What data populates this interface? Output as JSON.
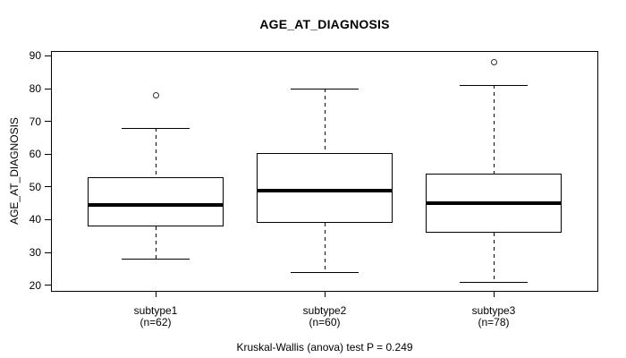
{
  "colors": {
    "line": "#000000",
    "median": "#000000",
    "box_fill": "#ffffff",
    "text": "#000000",
    "background": "#ffffff",
    "outlier_stroke": "#2f2f2f"
  },
  "chart_data": {
    "type": "boxplot",
    "title": "AGE_AT_DIAGNOSIS",
    "ylabel": "AGE_AT_DIAGNOSIS",
    "xlabel": "",
    "annotation": "Kruskal-Wallis (anova) test P = 0.249",
    "yticks": [
      20,
      30,
      40,
      50,
      60,
      70,
      80,
      90
    ],
    "ylim": [
      18,
      91.5
    ],
    "grid": false,
    "legend": false,
    "categories": [
      "subtype1",
      "subtype2",
      "subtype3"
    ],
    "series": [
      {
        "name": "subtype1",
        "sublabel": "(n=62)",
        "n": 62,
        "whisker_low": 28,
        "q1": 38,
        "median": 44.5,
        "q3": 53,
        "whisker_high": 68,
        "outliers": [
          78
        ]
      },
      {
        "name": "subtype2",
        "sublabel": "(n=60)",
        "n": 60,
        "whisker_low": 24,
        "q1": 39,
        "median": 49,
        "q3": 60.25,
        "whisker_high": 80,
        "outliers": []
      },
      {
        "name": "subtype3",
        "sublabel": "(n=78)",
        "n": 78,
        "whisker_low": 21,
        "q1": 36,
        "median": 45,
        "q3": 54,
        "whisker_high": 81,
        "outliers": [
          88
        ]
      }
    ]
  }
}
